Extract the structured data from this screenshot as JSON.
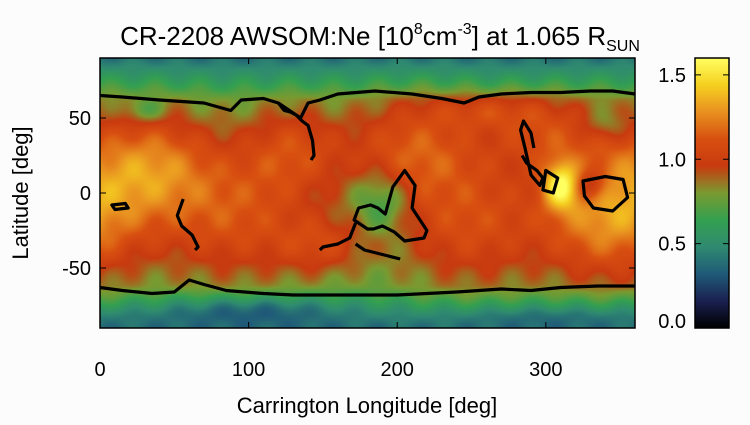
{
  "chart_data": {
    "type": "heatmap",
    "title": {
      "prefix": "CR-2208 AWSOM:Ne [10",
      "exp1": "8",
      "mid": "cm",
      "exp2": "-3",
      "suffix": "] at 1.065 R",
      "sub": "SUN"
    },
    "xlabel": "Carrington Longitude [deg]",
    "ylabel": "Latitude [deg]",
    "xlim": [
      0,
      360
    ],
    "ylim": [
      -90,
      90
    ],
    "xticks": [
      0,
      100,
      200,
      300
    ],
    "yticks": [
      50,
      0,
      -50
    ],
    "colorbar": {
      "range": [
        0.0,
        1.6
      ],
      "ticks": [
        0.0,
        0.5,
        1.0,
        1.5
      ],
      "tick_labels": [
        "0.0",
        "0.5",
        "1.0",
        "1.5"
      ],
      "colormap": [
        "#000000",
        "#1a2050",
        "#1f5a78",
        "#2f8a70",
        "#33a050",
        "#7a9a30",
        "#c83a10",
        "#d85010",
        "#e89020",
        "#f5d020",
        "#ffff60"
      ]
    },
    "field": {
      "background": 0.72,
      "blobs": [
        {
          "lon": 0,
          "lat": 0,
          "rl": 45,
          "rb": 50,
          "amp": 0.35
        },
        {
          "lon": 40,
          "lat": 20,
          "rl": 40,
          "rb": 35,
          "amp": 0.35
        },
        {
          "lon": 90,
          "lat": -15,
          "rl": 55,
          "rb": 45,
          "amp": 0.38
        },
        {
          "lon": 130,
          "lat": 30,
          "rl": 35,
          "rb": 30,
          "amp": 0.3
        },
        {
          "lon": 150,
          "lat": -35,
          "rl": 30,
          "rb": 20,
          "amp": 0.25
        },
        {
          "lon": 210,
          "lat": 30,
          "rl": 45,
          "rb": 35,
          "amp": 0.38
        },
        {
          "lon": 250,
          "lat": -20,
          "rl": 55,
          "rb": 45,
          "amp": 0.36
        },
        {
          "lon": 300,
          "lat": 40,
          "rl": 40,
          "rb": 25,
          "amp": 0.3
        },
        {
          "lon": 335,
          "lat": -20,
          "rl": 40,
          "rb": 40,
          "amp": 0.32
        },
        {
          "lon": 310,
          "lat": 5,
          "rl": 12,
          "rb": 16,
          "amp": 0.55
        },
        {
          "lon": 260,
          "lat": 55,
          "rl": 40,
          "rb": 12,
          "amp": 0.2
        },
        {
          "lon": 190,
          "lat": -5,
          "rl": 18,
          "rb": 20,
          "amp": -0.25
        },
        {
          "lon": 330,
          "lat": 5,
          "rl": 10,
          "rb": 10,
          "amp": -0.3
        },
        {
          "lon": 100,
          "lat": -78,
          "rl": 60,
          "rb": 10,
          "amp": -0.22
        },
        {
          "lon": 300,
          "lat": -82,
          "rl": 80,
          "rb": 8,
          "amp": -0.12
        },
        {
          "lon": 30,
          "lat": 55,
          "rl": 12,
          "rb": 8,
          "amp": -0.2
        },
        {
          "lon": 340,
          "lat": 45,
          "rl": 15,
          "rb": 10,
          "amp": -0.15
        }
      ]
    },
    "contours": [
      {
        "name": "north-boundary",
        "closed": false,
        "points": [
          [
            0,
            65
          ],
          [
            15,
            64
          ],
          [
            40,
            62
          ],
          [
            70,
            60
          ],
          [
            88,
            55
          ],
          [
            95,
            62
          ],
          [
            110,
            63
          ],
          [
            120,
            60
          ],
          [
            135,
            50
          ],
          [
            140,
            60
          ],
          [
            148,
            62
          ],
          [
            160,
            66
          ],
          [
            185,
            68
          ],
          [
            210,
            66
          ],
          [
            230,
            63
          ],
          [
            245,
            60
          ],
          [
            255,
            64
          ],
          [
            270,
            66
          ],
          [
            290,
            67
          ],
          [
            310,
            67
          ],
          [
            330,
            68
          ],
          [
            345,
            68
          ],
          [
            360,
            66
          ]
        ]
      },
      {
        "name": "south-boundary",
        "closed": false,
        "points": [
          [
            0,
            -63
          ],
          [
            15,
            -65
          ],
          [
            35,
            -67
          ],
          [
            50,
            -66
          ],
          [
            60,
            -58
          ],
          [
            70,
            -61
          ],
          [
            85,
            -65
          ],
          [
            110,
            -67
          ],
          [
            130,
            -68
          ],
          [
            160,
            -68
          ],
          [
            200,
            -68
          ],
          [
            240,
            -66
          ],
          [
            270,
            -64
          ],
          [
            290,
            -65
          ],
          [
            310,
            -63
          ],
          [
            335,
            -62
          ],
          [
            360,
            -62
          ]
        ]
      },
      {
        "name": "north-spur",
        "closed": false,
        "points": [
          [
            120,
            60
          ],
          [
            124,
            55
          ],
          [
            128,
            54
          ],
          [
            132,
            52
          ],
          [
            136,
            48
          ],
          [
            140,
            45
          ],
          [
            143,
            35
          ],
          [
            144,
            25
          ],
          [
            142,
            22
          ]
        ]
      },
      {
        "name": "hole-west",
        "closed": true,
        "points": [
          [
            8,
            -8
          ],
          [
            17,
            -7
          ],
          [
            19,
            -10
          ],
          [
            10,
            -11
          ]
        ]
      },
      {
        "name": "hole-west-mid",
        "closed": false,
        "points": [
          [
            56,
            -4
          ],
          [
            52,
            -15
          ],
          [
            55,
            -22
          ],
          [
            62,
            -28
          ],
          [
            66,
            -36
          ],
          [
            64,
            -38
          ]
        ]
      },
      {
        "name": "hole-central",
        "closed": true,
        "points": [
          [
            180,
            -24
          ],
          [
            171,
            -18
          ],
          [
            174,
            -10
          ],
          [
            182,
            -8
          ],
          [
            187,
            -10
          ],
          [
            192,
            -14
          ],
          [
            197,
            4
          ],
          [
            205,
            15
          ],
          [
            212,
            5
          ],
          [
            210,
            -10
          ],
          [
            220,
            -25
          ],
          [
            218,
            -30
          ],
          [
            205,
            -32
          ],
          [
            198,
            -26
          ],
          [
            190,
            -22
          ],
          [
            184,
            -24
          ]
        ]
      },
      {
        "name": "hole-central-spur",
        "closed": false,
        "points": [
          [
            172,
            -20
          ],
          [
            168,
            -30
          ],
          [
            160,
            -34
          ],
          [
            150,
            -36
          ],
          [
            148,
            -38
          ]
        ]
      },
      {
        "name": "hole-central-low",
        "closed": false,
        "points": [
          [
            172,
            -34
          ],
          [
            178,
            -38
          ],
          [
            186,
            -40
          ],
          [
            194,
            -42
          ],
          [
            202,
            -44
          ]
        ]
      },
      {
        "name": "hole-east-tongue",
        "closed": false,
        "points": [
          [
            284,
            25
          ],
          [
            287,
            20
          ],
          [
            294,
            15
          ],
          [
            298,
            10
          ],
          [
            296,
            5
          ],
          [
            290,
            12
          ],
          [
            286,
            30
          ],
          [
            283,
            42
          ],
          [
            285,
            48
          ],
          [
            290,
            40
          ],
          [
            292,
            30
          ]
        ]
      },
      {
        "name": "hole-east-blob",
        "closed": true,
        "points": [
          [
            300,
            15
          ],
          [
            308,
            10
          ],
          [
            305,
            0
          ],
          [
            298,
            2
          ]
        ]
      },
      {
        "name": "hole-east-right",
        "closed": true,
        "points": [
          [
            325,
            8
          ],
          [
            340,
            11
          ],
          [
            352,
            9
          ],
          [
            355,
            -3
          ],
          [
            345,
            -12
          ],
          [
            332,
            -10
          ],
          [
            326,
            -2
          ]
        ]
      }
    ]
  }
}
